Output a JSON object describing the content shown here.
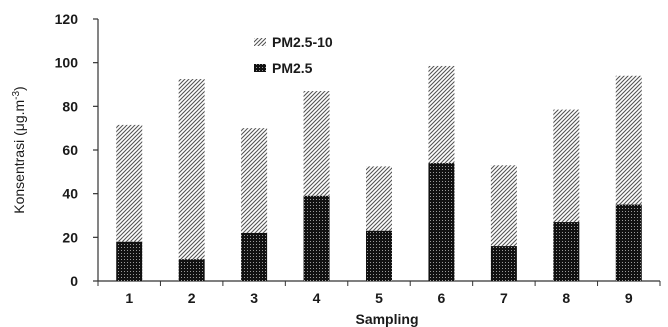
{
  "chart_data": {
    "type": "bar",
    "stacked": true,
    "categories": [
      "1",
      "2",
      "3",
      "4",
      "5",
      "6",
      "7",
      "8",
      "9"
    ],
    "series": [
      {
        "name": "PM2.5",
        "values": [
          18,
          10,
          22,
          39,
          23,
          54,
          16,
          27,
          35
        ]
      },
      {
        "name": "PM2.5-10",
        "values": [
          53.5,
          82.5,
          48,
          48,
          29.5,
          44.5,
          37,
          51.5,
          59
        ]
      }
    ],
    "xlabel": "Sampling",
    "ylabel_main": "Konsentrasi (μg.m",
    "ylabel_sup": "-3",
    "ylabel_end": ")",
    "ylim": [
      0,
      120
    ],
    "yticks": [
      "0",
      "20",
      "40",
      "60",
      "80",
      "100",
      "120"
    ],
    "grid": false,
    "legend_position": "top-center",
    "legend_order": [
      "PM2.5-10",
      "PM2.5"
    ],
    "colors": {
      "pm25_fill": "#111111",
      "pm2510_fill": "#8a8a8a",
      "axis": "#333333"
    }
  }
}
